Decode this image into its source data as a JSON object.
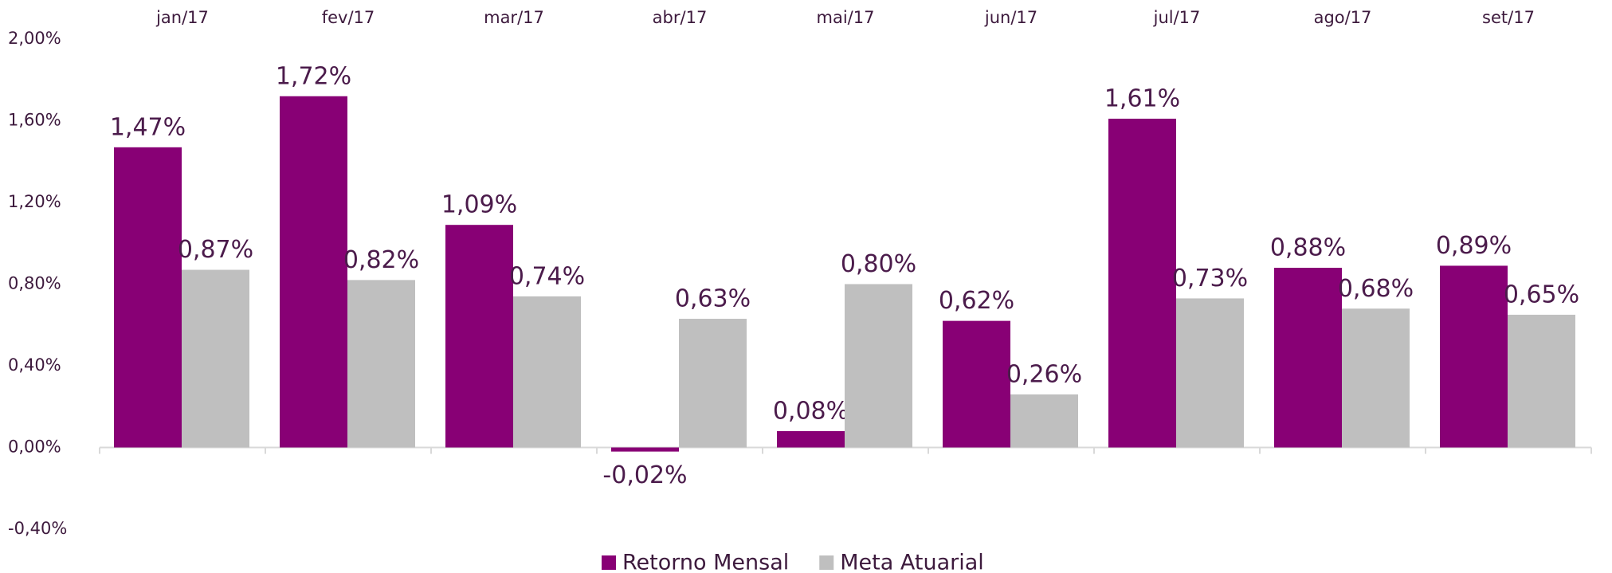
{
  "chart_data": {
    "type": "bar",
    "categories": [
      "jan/17",
      "fev/17",
      "mar/17",
      "abr/17",
      "mai/17",
      "jun/17",
      "jul/17",
      "ago/17",
      "set/17"
    ],
    "series": [
      {
        "name": "Retorno Mensal",
        "color": "#880075",
        "values": [
          1.47,
          1.72,
          1.09,
          -0.02,
          0.08,
          0.62,
          1.61,
          0.88,
          0.89
        ],
        "value_labels": [
          "1,47%",
          "1,72%",
          "1,09%",
          "-0,02%",
          "0,08%",
          "0,62%",
          "1,61%",
          "0,88%",
          "0,89%"
        ]
      },
      {
        "name": "Meta Atuarial",
        "color": "#bfbfbf",
        "values": [
          0.87,
          0.82,
          0.74,
          0.63,
          0.8,
          0.26,
          0.73,
          0.68,
          0.65
        ],
        "value_labels": [
          "0,87%",
          "0,82%",
          "0,74%",
          "0,63%",
          "0,80%",
          "0,26%",
          "0,73%",
          "0,68%",
          "0,65%"
        ]
      }
    ],
    "ylim": [
      -0.4,
      2.0
    ],
    "yticks": [
      {
        "value": -0.4,
        "label": "-0,40%"
      },
      {
        "value": 0,
        "label": "0,00%"
      },
      {
        "value": 0.4,
        "label": "0,40%"
      },
      {
        "value": 0.8,
        "label": "0,80%"
      },
      {
        "value": 1.2,
        "label": "1,20%"
      },
      {
        "value": 1.6,
        "label": "1,60%"
      },
      {
        "value": 2.0,
        "label": "2,00%"
      }
    ],
    "grid": false,
    "legend": "bottom"
  }
}
